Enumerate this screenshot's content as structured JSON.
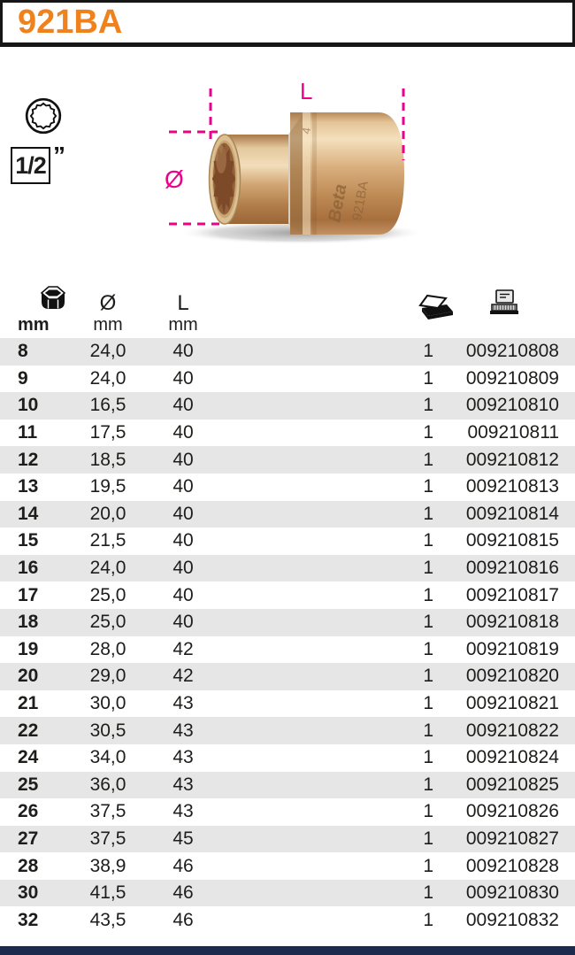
{
  "header": {
    "title": "921BA"
  },
  "badges": {
    "drive_size": "1/2",
    "drive_unit_mark": "”"
  },
  "diagram": {
    "length_label": "L",
    "diameter_label": "Ø",
    "engraving_brand": "Beta",
    "engraving_model": "921BA",
    "engraving_digit": "4"
  },
  "table": {
    "header": {
      "size_unit": "mm",
      "diameter_symbol": "Ø",
      "diameter_unit": "mm",
      "length_symbol": "L",
      "length_unit": "mm"
    },
    "rows": [
      {
        "size": "8",
        "diameter": "24,0",
        "length": "40",
        "pack": "1",
        "code": "009210808"
      },
      {
        "size": "9",
        "diameter": "24,0",
        "length": "40",
        "pack": "1",
        "code": "009210809"
      },
      {
        "size": "10",
        "diameter": "16,5",
        "length": "40",
        "pack": "1",
        "code": "009210810"
      },
      {
        "size": "11",
        "diameter": "17,5",
        "length": "40",
        "pack": "1",
        "code": "009210811"
      },
      {
        "size": "12",
        "diameter": "18,5",
        "length": "40",
        "pack": "1",
        "code": "009210812"
      },
      {
        "size": "13",
        "diameter": "19,5",
        "length": "40",
        "pack": "1",
        "code": "009210813"
      },
      {
        "size": "14",
        "diameter": "20,0",
        "length": "40",
        "pack": "1",
        "code": "009210814"
      },
      {
        "size": "15",
        "diameter": "21,5",
        "length": "40",
        "pack": "1",
        "code": "009210815"
      },
      {
        "size": "16",
        "diameter": "24,0",
        "length": "40",
        "pack": "1",
        "code": "009210816"
      },
      {
        "size": "17",
        "diameter": "25,0",
        "length": "40",
        "pack": "1",
        "code": "009210817"
      },
      {
        "size": "18",
        "diameter": "25,0",
        "length": "40",
        "pack": "1",
        "code": "009210818"
      },
      {
        "size": "19",
        "diameter": "28,0",
        "length": "42",
        "pack": "1",
        "code": "009210819"
      },
      {
        "size": "20",
        "diameter": "29,0",
        "length": "42",
        "pack": "1",
        "code": "009210820"
      },
      {
        "size": "21",
        "diameter": "30,0",
        "length": "43",
        "pack": "1",
        "code": "009210821"
      },
      {
        "size": "22",
        "diameter": "30,5",
        "length": "43",
        "pack": "1",
        "code": "009210822"
      },
      {
        "size": "24",
        "diameter": "34,0",
        "length": "43",
        "pack": "1",
        "code": "009210824"
      },
      {
        "size": "25",
        "diameter": "36,0",
        "length": "43",
        "pack": "1",
        "code": "009210825"
      },
      {
        "size": "26",
        "diameter": "37,5",
        "length": "43",
        "pack": "1",
        "code": "009210826"
      },
      {
        "size": "27",
        "diameter": "37,5",
        "length": "45",
        "pack": "1",
        "code": "009210827"
      },
      {
        "size": "28",
        "diameter": "38,9",
        "length": "46",
        "pack": "1",
        "code": "009210828"
      },
      {
        "size": "30",
        "diameter": "41,5",
        "length": "46",
        "pack": "1",
        "code": "009210830"
      },
      {
        "size": "32",
        "diameter": "43,5",
        "length": "46",
        "pack": "1",
        "code": "009210832"
      }
    ]
  },
  "colors": {
    "accent_orange": "#f0821e",
    "accent_magenta": "#ec008c",
    "row_stripe": "#e6e6e6",
    "footer_navy": "#1c2a4e",
    "text": "#1d1d1b"
  }
}
